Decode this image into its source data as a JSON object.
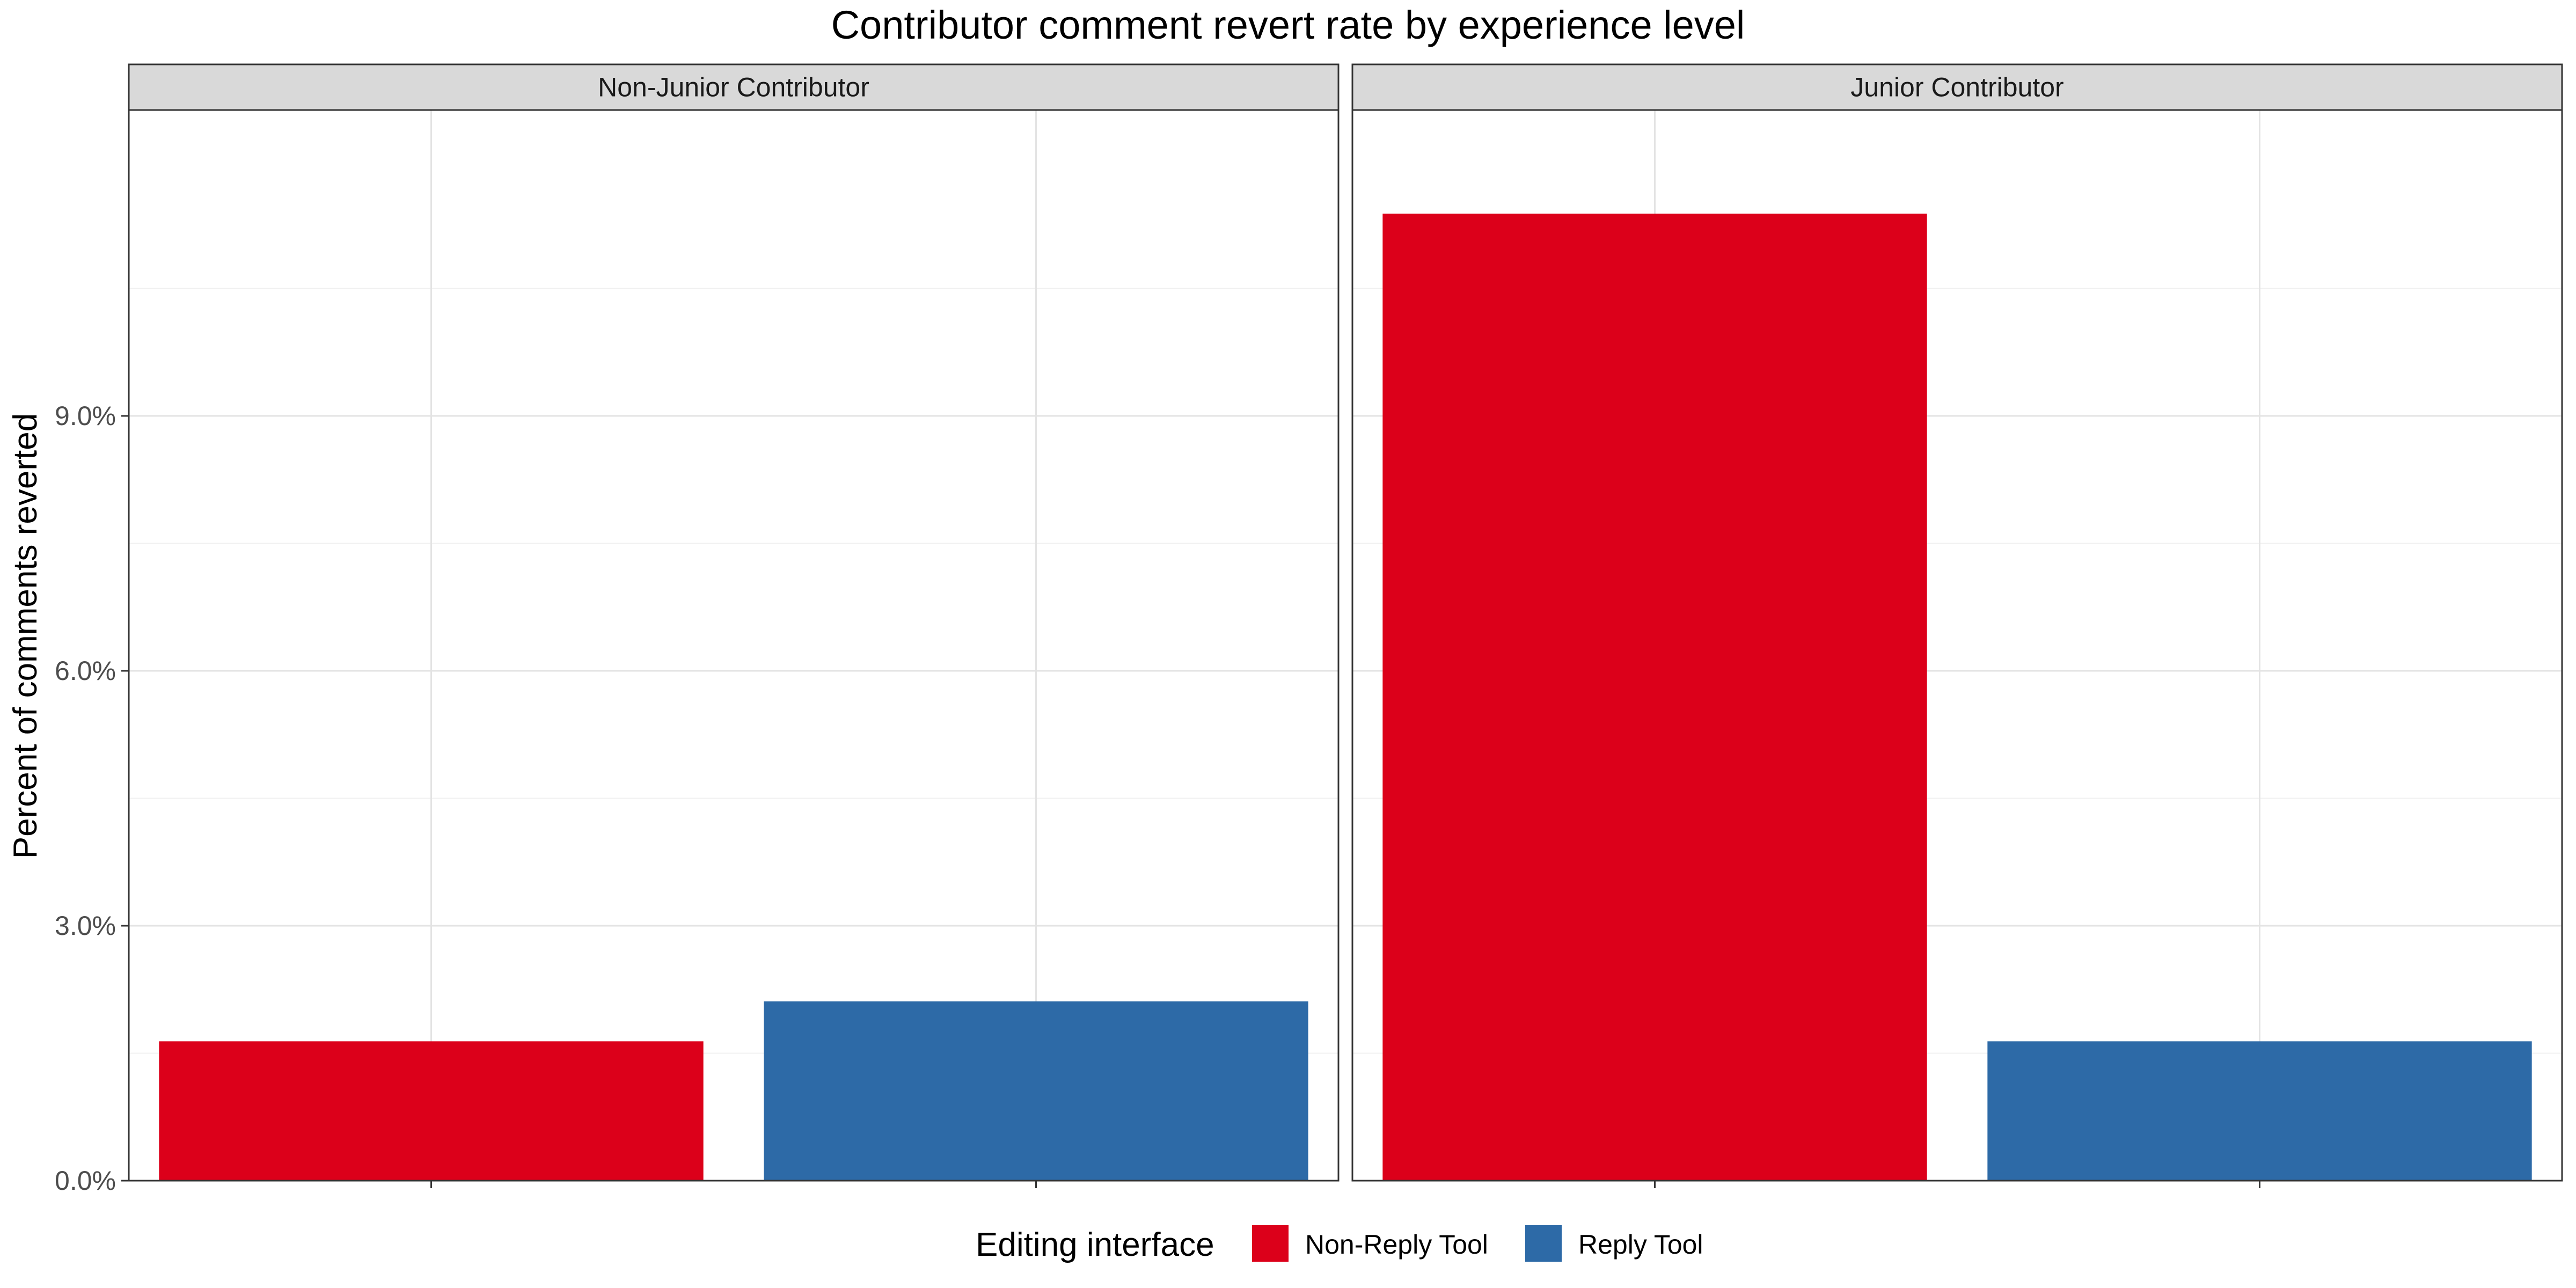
{
  "chart_data": {
    "type": "bar",
    "title": "Contributor comment revert rate by experience level",
    "ylabel": "Percent of comments reverted",
    "xlabel": "",
    "ylim": [
      0,
      12.6
    ],
    "y_ticks": [
      0,
      3,
      6,
      9
    ],
    "y_tick_labels": [
      "0.0%",
      "3.0%",
      "6.0%",
      "9.0%"
    ],
    "grid": true,
    "legend_position": "bottom",
    "legend_title": "Editing interface",
    "categories": [
      "Non-Reply Tool",
      "Reply Tool"
    ],
    "series_colors": [
      "#dc001a",
      "#2d6aa7"
    ],
    "facets": [
      {
        "name": "Non-Junior Contributor",
        "values": [
          1.64,
          2.11
        ]
      },
      {
        "name": "Junior Contributor",
        "values": [
          11.38,
          1.64
        ]
      }
    ]
  }
}
